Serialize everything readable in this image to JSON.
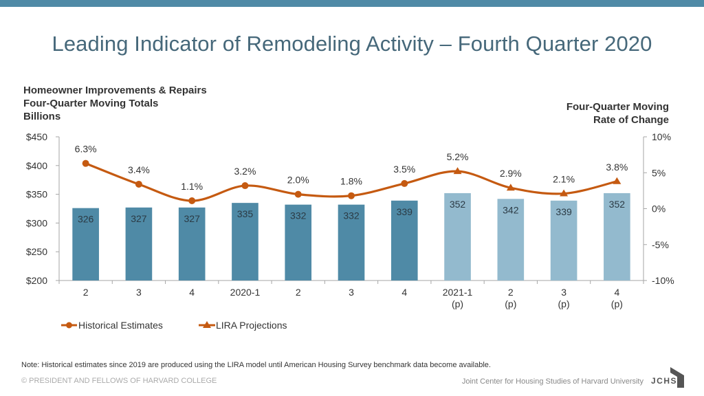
{
  "title": "Leading Indicator of Remodeling Activity – Fourth Quarter 2020",
  "left_axis_title": [
    "Homeowner Improvements & Repairs",
    "Four-Quarter Moving Totals",
    "Billions"
  ],
  "right_axis_title": [
    "Four-Quarter Moving",
    "Rate of Change"
  ],
  "note": "Note: Historical estimates since 2019 are produced using the LIRA model until American Housing Survey benchmark data become available.",
  "footer": {
    "copyright": "© PRESIDENT AND FELLOWS OF HARVARD COLLEGE",
    "org": "Joint Center for Housing Studies of Harvard University",
    "logo_text": "JCHS"
  },
  "colors": {
    "historical_bar": "#4f8aa6",
    "projection_bar": "#93bace",
    "line": "#c55a11",
    "axis": "#a6a6a6",
    "band": "#4f8aa6"
  },
  "chart_data": {
    "type": "bar",
    "title": "Leading Indicator of Remodeling Activity – Fourth Quarter 2020",
    "categories": [
      [
        "2"
      ],
      [
        "3"
      ],
      [
        "4"
      ],
      [
        "2020-1"
      ],
      [
        "2"
      ],
      [
        "3"
      ],
      [
        "4"
      ],
      [
        "2021-1",
        "(p)"
      ],
      [
        "2",
        "(p)"
      ],
      [
        "3",
        "(p)"
      ],
      [
        "4",
        "(p)"
      ]
    ],
    "bar_series": {
      "name": "Homeowner Improvements & Repairs (Billions)",
      "values": [
        326,
        327,
        327,
        335,
        332,
        332,
        339,
        352,
        342,
        339,
        352
      ],
      "projected": [
        false,
        false,
        false,
        false,
        false,
        false,
        false,
        true,
        true,
        true,
        true
      ]
    },
    "line_series": [
      {
        "name": "Historical Estimates",
        "marker": "circle",
        "indices": [
          0,
          1,
          2,
          3,
          4,
          5,
          6
        ]
      },
      {
        "name": "LIRA Projections",
        "marker": "triangle",
        "indices": [
          6,
          7,
          8,
          9,
          10
        ]
      }
    ],
    "rate_values": [
      6.3,
      3.4,
      1.1,
      3.2,
      2.0,
      1.8,
      3.5,
      5.2,
      2.9,
      2.1,
      3.8
    ],
    "rate_labels": [
      "6.3%",
      "3.4%",
      "1.1%",
      "3.2%",
      "2.0%",
      "1.8%",
      "3.5%",
      "5.2%",
      "2.9%",
      "2.1%",
      "3.8%"
    ],
    "left_axis": {
      "label": "Billions",
      "ylim": [
        200,
        450
      ],
      "ticks": [
        200,
        250,
        300,
        350,
        400,
        450
      ],
      "tick_labels": [
        "$200",
        "$250",
        "$300",
        "$350",
        "$400",
        "$450"
      ]
    },
    "right_axis": {
      "label": "Four-Quarter Moving Rate of Change",
      "ylim": [
        -10,
        10
      ],
      "ticks": [
        -10,
        -5,
        0,
        5,
        10
      ],
      "tick_labels": [
        "-10%",
        "-5%",
        "0%",
        "5%",
        "10%"
      ]
    },
    "legend": {
      "placement": "bottom-left",
      "entries": [
        "Historical Estimates",
        "LIRA Projections"
      ]
    },
    "grid": false
  }
}
